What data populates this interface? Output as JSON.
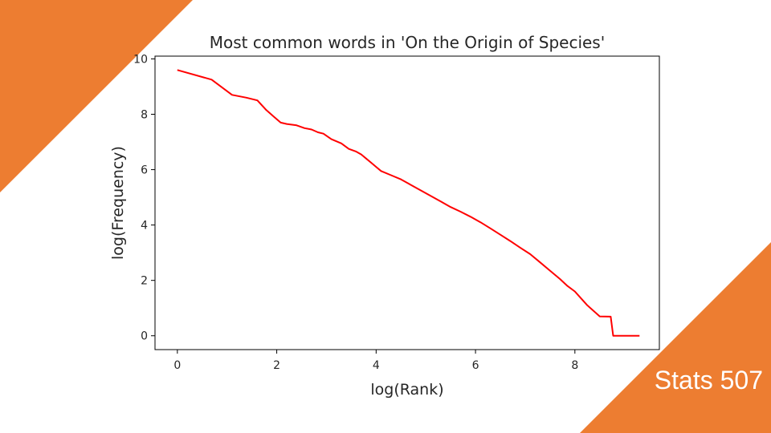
{
  "slide": {
    "accent_color": "#ED7D31",
    "course_label": "Stats 507"
  },
  "chart_data": {
    "type": "line",
    "title": "Most common words in 'On the Origin of Species'",
    "xlabel": "log(Rank)",
    "ylabel": "log(Frequency)",
    "xlim": [
      -0.45,
      9.7
    ],
    "ylim": [
      -0.5,
      10.1
    ],
    "xticks": [
      0,
      2,
      4,
      6,
      8
    ],
    "yticks": [
      0,
      2,
      4,
      6,
      8,
      10
    ],
    "grid": false,
    "line_color": "#FF0000",
    "series": [
      {
        "x": [
          0.0,
          0.69,
          1.1,
          1.39,
          1.61,
          1.79,
          1.95,
          2.08,
          2.2,
          2.4,
          2.56,
          2.7,
          2.83,
          2.94,
          3.1,
          3.3,
          3.45,
          3.6,
          3.7,
          3.8,
          3.9,
          4.0,
          4.1,
          4.3,
          4.5,
          4.7,
          4.9,
          5.1,
          5.3,
          5.5,
          5.7,
          5.9,
          6.1,
          6.3,
          6.5,
          6.7,
          6.9,
          7.1,
          7.3,
          7.5,
          7.7,
          7.85,
          8.0,
          8.1,
          8.25,
          8.5,
          8.72,
          8.77,
          9.3
        ],
        "y": [
          9.6,
          9.25,
          8.7,
          8.6,
          8.5,
          8.15,
          7.9,
          7.7,
          7.65,
          7.6,
          7.5,
          7.45,
          7.35,
          7.3,
          7.1,
          6.95,
          6.75,
          6.65,
          6.55,
          6.4,
          6.25,
          6.1,
          5.95,
          5.8,
          5.65,
          5.45,
          5.25,
          5.05,
          4.85,
          4.65,
          4.48,
          4.3,
          4.1,
          3.88,
          3.65,
          3.42,
          3.18,
          2.95,
          2.65,
          2.35,
          2.05,
          1.8,
          1.6,
          1.4,
          1.1,
          0.7,
          0.69,
          0.0,
          0.0
        ]
      }
    ]
  }
}
